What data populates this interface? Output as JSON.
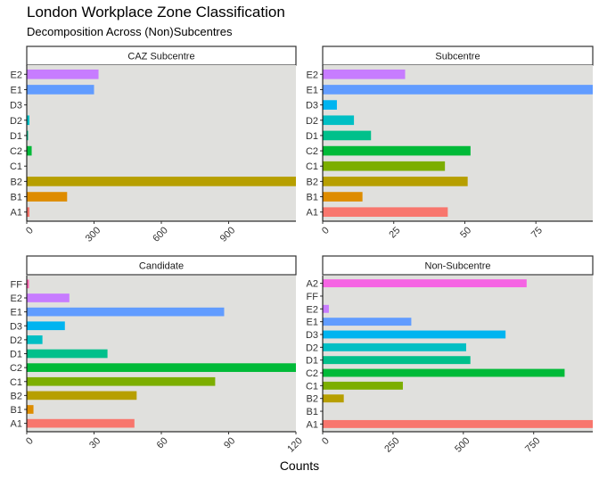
{
  "title": "London Workplace Zone Classification",
  "subtitle": "Decomposition Across (Non)Subcentres",
  "xlabel": "Counts",
  "colors": {
    "A1": "#F8766D",
    "A2": "#F564E3",
    "B1": "#DE8C00",
    "B2": "#B79F00",
    "C1": "#7CAE00",
    "C2": "#00BA38",
    "D1": "#00C08B",
    "D2": "#00BFC4",
    "D3": "#00B4F0",
    "E1": "#619CFF",
    "E2": "#C77CFF",
    "FF": "#FF64B0",
    "panel_bg": "#E0E0DD",
    "strip_bg": "#FFFFFF"
  },
  "chart_data": [
    {
      "type": "bar",
      "orientation": "horizontal",
      "title": "CAZ Subcentre",
      "categories": [
        "A1",
        "B1",
        "B2",
        "C1",
        "C2",
        "D1",
        "D2",
        "D3",
        "E1",
        "E2"
      ],
      "values": [
        12,
        180,
        1200,
        0,
        22,
        6,
        12,
        0,
        300,
        320
      ],
      "xlim": [
        0,
        1200
      ],
      "xticks": [
        0,
        300,
        600,
        900
      ]
    },
    {
      "type": "bar",
      "orientation": "horizontal",
      "title": "Subcentre",
      "categories": [
        "A1",
        "B1",
        "B2",
        "C1",
        "C2",
        "D1",
        "D2",
        "D3",
        "E1",
        "E2"
      ],
      "values": [
        44,
        14,
        51,
        43,
        52,
        17,
        11,
        5,
        95,
        29
      ],
      "xlim": [
        0,
        95
      ],
      "xticks": [
        0,
        25,
        50,
        75
      ]
    },
    {
      "type": "bar",
      "orientation": "horizontal",
      "title": "Candidate",
      "categories": [
        "A1",
        "B1",
        "B2",
        "C1",
        "C2",
        "D1",
        "D2",
        "D3",
        "E1",
        "E2",
        "FF"
      ],
      "values": [
        48,
        3,
        49,
        84,
        122,
        36,
        7,
        17,
        88,
        19,
        1
      ],
      "xlim": [
        0,
        120
      ],
      "xticks": [
        0,
        30,
        60,
        90,
        120
      ]
    },
    {
      "type": "bar",
      "orientation": "horizontal",
      "title": "Non-Subcentre",
      "categories": [
        "A1",
        "B1",
        "B2",
        "C1",
        "C2",
        "D1",
        "D2",
        "D3",
        "E1",
        "E2",
        "FF",
        "A2"
      ],
      "values": [
        960,
        0,
        75,
        285,
        860,
        525,
        510,
        650,
        315,
        22,
        0,
        725
      ],
      "xlim": [
        0,
        960
      ],
      "xticks": [
        0,
        250,
        500,
        750
      ]
    }
  ]
}
